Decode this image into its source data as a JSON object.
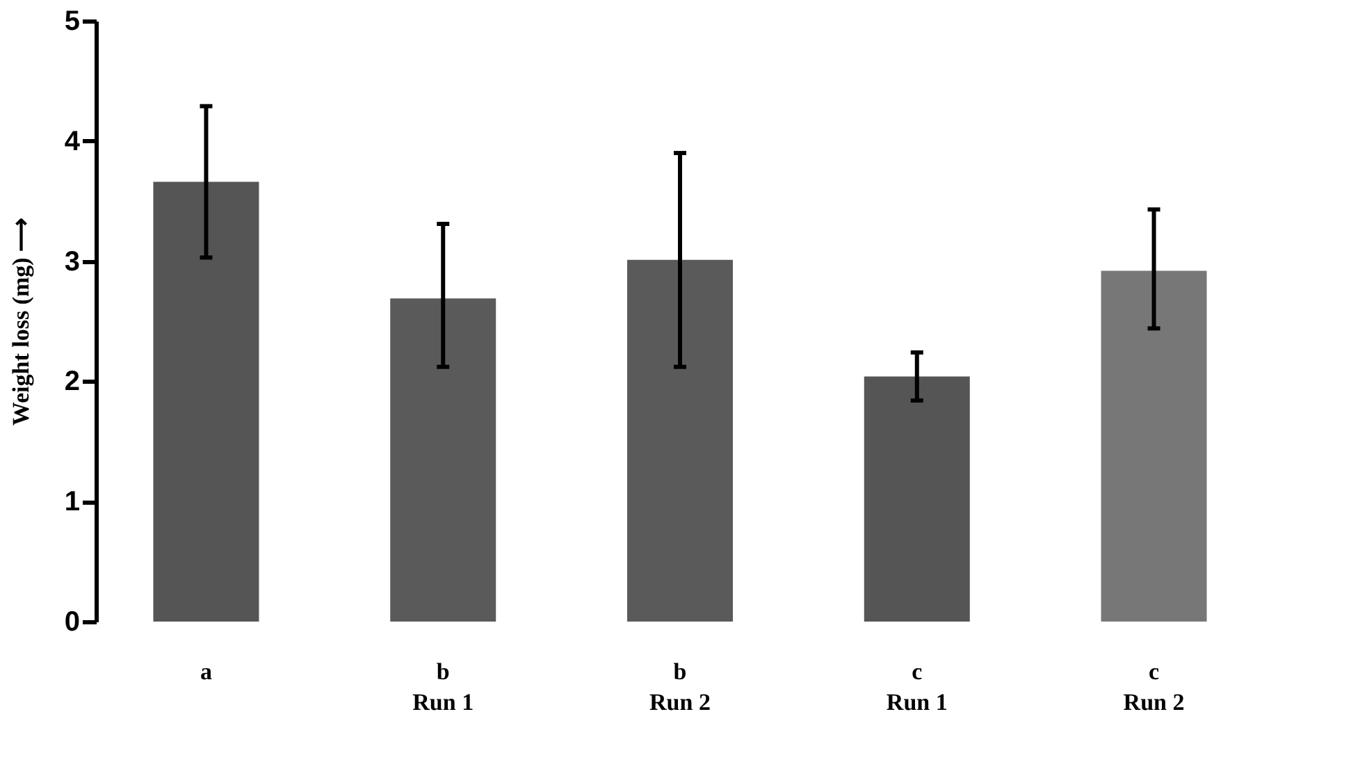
{
  "chart_data": {
    "type": "bar",
    "ylabel": "Weight loss (mg) ⟶",
    "categories": [
      "a",
      "b\nRun 1",
      "b\nRun 2",
      "c\nRun 1",
      "c\nRun 2"
    ],
    "values": [
      3.66,
      2.69,
      3.01,
      2.04,
      2.92
    ],
    "colors": [
      "#555555",
      "#5a5a5a",
      "#5a5a5a",
      "#555555",
      "#777777"
    ],
    "errors": [
      [
        3.03,
        4.29
      ],
      [
        2.12,
        3.31
      ],
      [
        2.12,
        3.9
      ],
      [
        1.84,
        2.24
      ],
      [
        2.44,
        3.43
      ]
    ],
    "ylim": [
      0,
      5
    ],
    "yticks": [
      0,
      1,
      2,
      3,
      4,
      5
    ],
    "grid": false
  }
}
